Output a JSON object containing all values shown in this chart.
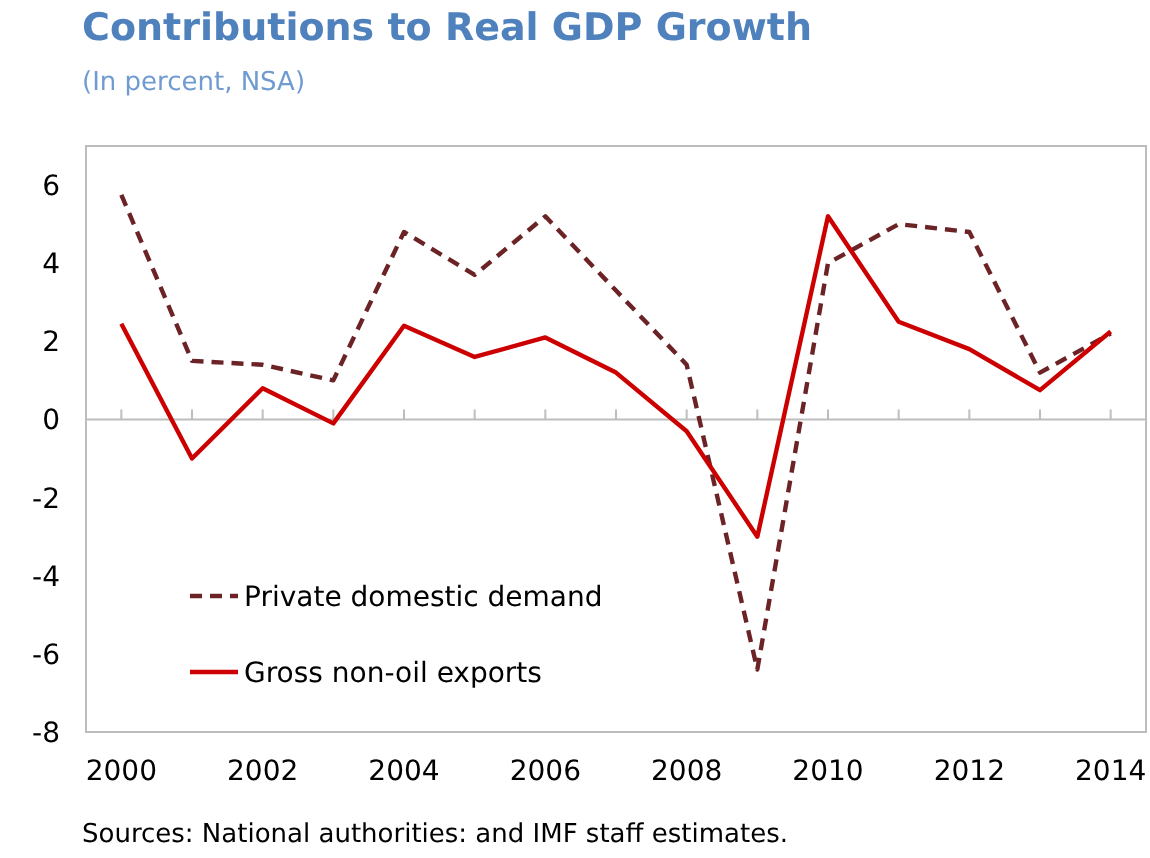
{
  "chart_data": {
    "type": "line",
    "title": "Contributions to Real GDP Growth",
    "subtitle": "(In percent, NSA)",
    "annotations": [
      "Sources: National authorities: and IMF staff estimates."
    ],
    "x": [
      2000,
      2001,
      2002,
      2003,
      2004,
      2005,
      2006,
      2007,
      2008,
      2009,
      2010,
      2011,
      2012,
      2013,
      2014
    ],
    "series": [
      {
        "name": "Private domestic demand",
        "color": "#6b2326",
        "line_style": "dashed",
        "values": [
          5.75,
          1.5,
          1.4,
          1.0,
          4.8,
          3.7,
          5.2,
          3.3,
          1.4,
          -6.4,
          4.0,
          5.0,
          4.8,
          1.2,
          2.2
        ]
      },
      {
        "name": "Gross non-oil exports",
        "color": "#cc0000",
        "line_style": "solid",
        "values": [
          2.45,
          -1.0,
          0.8,
          -0.1,
          2.4,
          1.6,
          2.1,
          1.2,
          -0.3,
          -3.0,
          5.2,
          2.5,
          1.8,
          0.75,
          2.25
        ]
      }
    ],
    "xlim": [
      1999.5,
      2014.5
    ],
    "xticks": [
      2000,
      {
        "value": 2001,
        "label": null
      },
      2002,
      {
        "value": 2003,
        "label": null
      },
      2004,
      {
        "value": 2005,
        "label": null
      },
      2006,
      {
        "value": 2007,
        "label": null
      },
      2008,
      {
        "value": 2009,
        "label": null
      },
      2010,
      {
        "value": 2011,
        "label": null
      },
      2012,
      {
        "value": 2013,
        "label": null
      },
      2014
    ],
    "ylim": [
      -8,
      7
    ],
    "yticks": [
      -8,
      -6,
      -4,
      -2,
      0,
      2,
      4,
      6
    ],
    "legend": "bottom left",
    "marker": "none"
  }
}
